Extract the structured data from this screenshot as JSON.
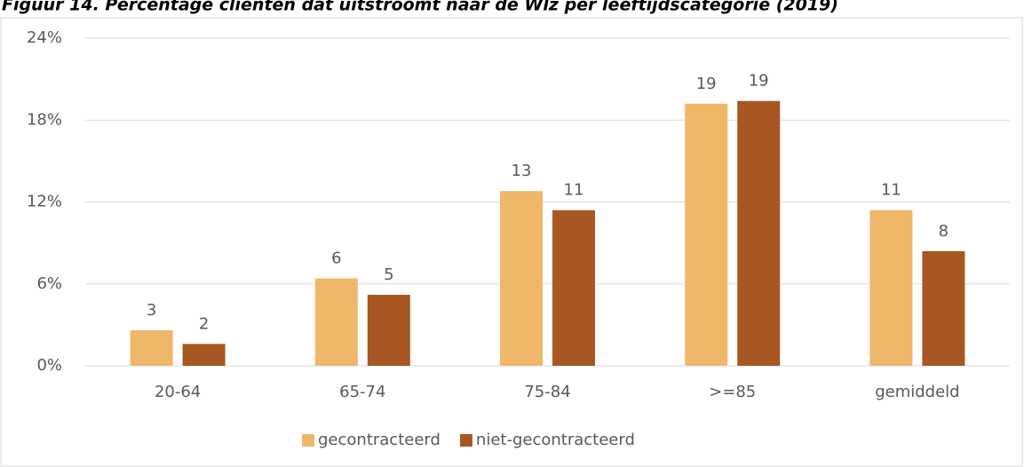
{
  "chart_data": {
    "type": "bar",
    "title": "Figuur 14. Percentage cliënten dat uitstroomt naar de Wlz per leeftijdscategorie (2019)",
    "categories": [
      "20-64",
      "65-74",
      "75-84",
      ">=85",
      "gemiddeld"
    ],
    "series": [
      {
        "name": "gecontracteerd",
        "color": "#f0b76a",
        "values": [
          2.6,
          6.4,
          12.8,
          19.2,
          11.4
        ],
        "value_labels": [
          "3",
          "6",
          "13",
          "19",
          "11"
        ]
      },
      {
        "name": "niet-gecontracteerd",
        "color": "#a85722",
        "values": [
          1.6,
          5.2,
          11.4,
          19.4,
          8.4
        ],
        "value_labels": [
          "2",
          "5",
          "11",
          "19",
          "8"
        ]
      }
    ],
    "ylim": [
      0,
      24
    ],
    "yticks": [
      {
        "value": 0,
        "label": "0%"
      },
      {
        "value": 6,
        "label": "6%"
      },
      {
        "value": 12,
        "label": "12%"
      },
      {
        "value": 18,
        "label": "18%"
      },
      {
        "value": 24,
        "label": "24%"
      }
    ],
    "grid": true,
    "legend": "bottom"
  }
}
